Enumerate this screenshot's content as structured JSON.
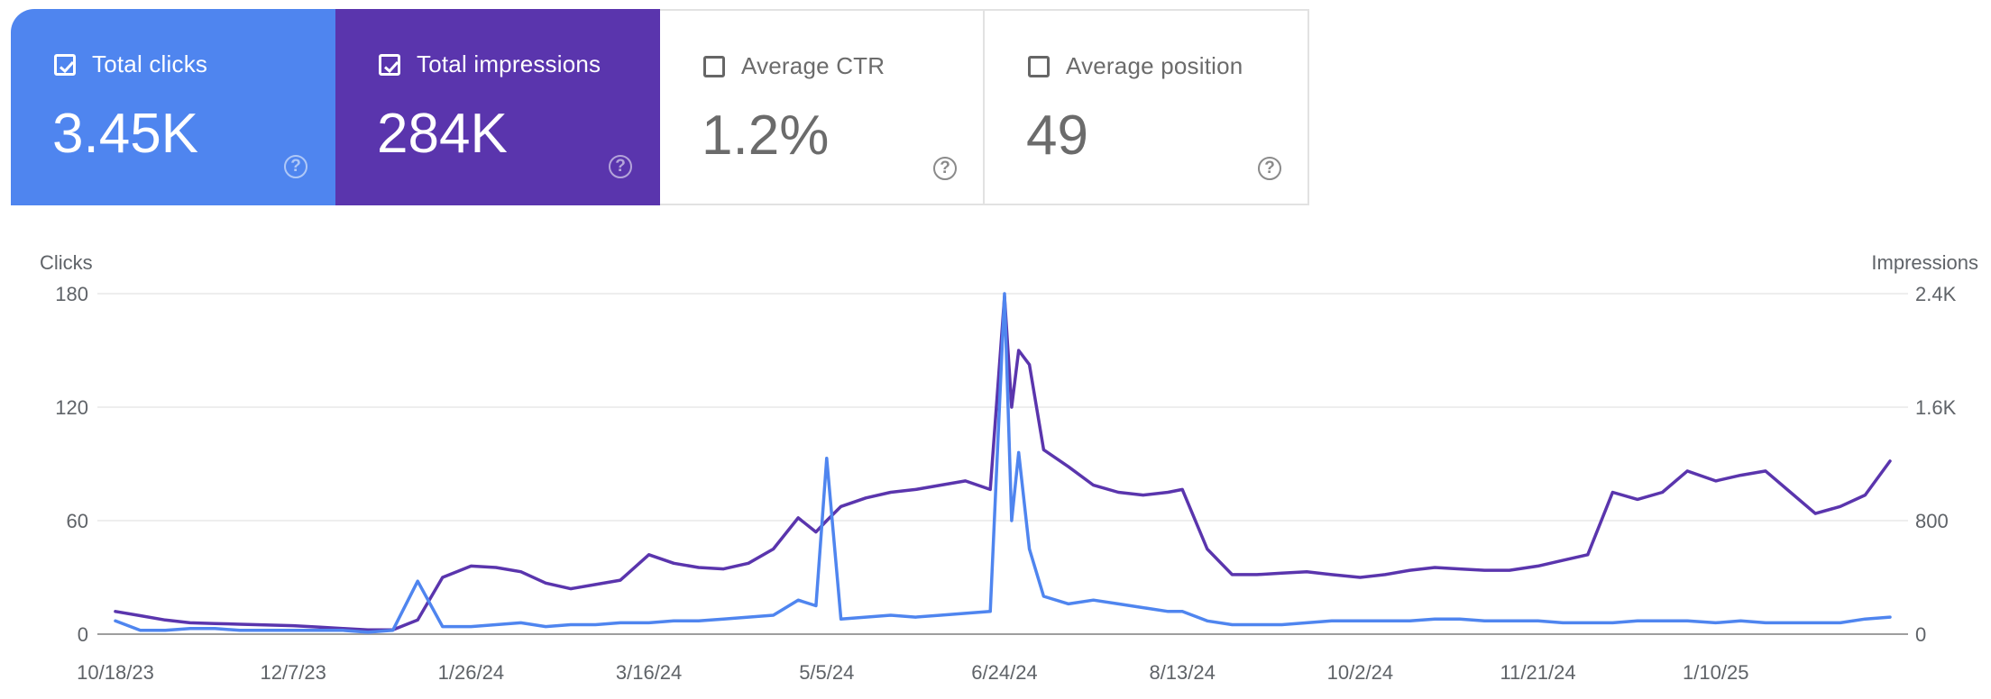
{
  "metrics": [
    {
      "label": "Total clicks",
      "value": "3.45K",
      "checked": true,
      "color": "#4f85ef"
    },
    {
      "label": "Total impressions",
      "value": "284K",
      "checked": true,
      "color": "#5a35ad"
    },
    {
      "label": "Average CTR",
      "value": "1.2%",
      "checked": false
    },
    {
      "label": "Average position",
      "value": "49",
      "checked": false
    }
  ],
  "help_glyph": "?",
  "chart_data": {
    "type": "line",
    "left_axis_title": "Clicks",
    "right_axis_title": "Impressions",
    "left_ticks": [
      "180",
      "120",
      "60",
      "0"
    ],
    "right_ticks": [
      "2.4K",
      "1.6K",
      "800",
      "0"
    ],
    "x_ticks": [
      "10/18/23",
      "12/7/23",
      "1/26/24",
      "3/16/24",
      "5/5/24",
      "6/24/24",
      "8/13/24",
      "10/2/24",
      "11/21/24",
      "1/10/25"
    ],
    "y_left_range": [
      0,
      180
    ],
    "y_right_range": [
      0,
      2400
    ],
    "grid": true,
    "series": [
      {
        "name": "Clicks",
        "axis": "left",
        "color": "#4f85ef",
        "points": [
          [
            "10/18/23",
            7
          ],
          [
            "10/25/23",
            2
          ],
          [
            "11/1/23",
            2
          ],
          [
            "11/8/23",
            3
          ],
          [
            "11/15/23",
            3
          ],
          [
            "11/22/23",
            2
          ],
          [
            "11/29/23",
            2
          ],
          [
            "12/7/23",
            2
          ],
          [
            "12/14/23",
            2
          ],
          [
            "12/21/23",
            2
          ],
          [
            "12/28/23",
            1
          ],
          [
            "1/4/24",
            2
          ],
          [
            "1/11/24",
            28
          ],
          [
            "1/18/24",
            4
          ],
          [
            "1/26/24",
            4
          ],
          [
            "2/2/24",
            5
          ],
          [
            "2/9/24",
            6
          ],
          [
            "2/16/24",
            4
          ],
          [
            "2/23/24",
            5
          ],
          [
            "3/1/24",
            5
          ],
          [
            "3/8/24",
            6
          ],
          [
            "3/16/24",
            6
          ],
          [
            "3/23/24",
            7
          ],
          [
            "3/30/24",
            7
          ],
          [
            "4/6/24",
            8
          ],
          [
            "4/13/24",
            9
          ],
          [
            "4/20/24",
            10
          ],
          [
            "4/27/24",
            18
          ],
          [
            "5/2/24",
            15
          ],
          [
            "5/5/24",
            93
          ],
          [
            "5/9/24",
            8
          ],
          [
            "5/16/24",
            9
          ],
          [
            "5/23/24",
            10
          ],
          [
            "5/30/24",
            9
          ],
          [
            "6/6/24",
            10
          ],
          [
            "6/13/24",
            11
          ],
          [
            "6/20/24",
            12
          ],
          [
            "6/24/24",
            180
          ],
          [
            "6/26/24",
            60
          ],
          [
            "6/28/24",
            96
          ],
          [
            "7/1/24",
            45
          ],
          [
            "7/5/24",
            20
          ],
          [
            "7/12/24",
            16
          ],
          [
            "7/19/24",
            18
          ],
          [
            "7/26/24",
            16
          ],
          [
            "8/2/24",
            14
          ],
          [
            "8/9/24",
            12
          ],
          [
            "8/13/24",
            12
          ],
          [
            "8/20/24",
            7
          ],
          [
            "8/27/24",
            5
          ],
          [
            "9/3/24",
            5
          ],
          [
            "9/10/24",
            5
          ],
          [
            "9/17/24",
            6
          ],
          [
            "9/24/24",
            7
          ],
          [
            "10/2/24",
            7
          ],
          [
            "10/9/24",
            7
          ],
          [
            "10/16/24",
            7
          ],
          [
            "10/23/24",
            8
          ],
          [
            "10/30/24",
            8
          ],
          [
            "11/6/24",
            7
          ],
          [
            "11/13/24",
            7
          ],
          [
            "11/21/24",
            7
          ],
          [
            "11/28/24",
            6
          ],
          [
            "12/5/24",
            6
          ],
          [
            "12/12/24",
            6
          ],
          [
            "12/19/24",
            7
          ],
          [
            "12/26/24",
            7
          ],
          [
            "1/2/25",
            7
          ],
          [
            "1/10/25",
            6
          ],
          [
            "1/17/25",
            7
          ],
          [
            "1/24/25",
            6
          ],
          [
            "1/31/25",
            6
          ],
          [
            "2/7/25",
            6
          ],
          [
            "2/14/25",
            6
          ],
          [
            "2/21/25",
            8
          ],
          [
            "2/28/25",
            9
          ]
        ]
      },
      {
        "name": "Impressions",
        "axis": "right",
        "color": "#5a35ad",
        "points": [
          [
            "10/18/23",
            160
          ],
          [
            "10/25/23",
            130
          ],
          [
            "11/1/23",
            100
          ],
          [
            "11/8/23",
            80
          ],
          [
            "11/15/23",
            75
          ],
          [
            "11/22/23",
            70
          ],
          [
            "11/29/23",
            65
          ],
          [
            "12/7/23",
            60
          ],
          [
            "12/14/23",
            50
          ],
          [
            "12/21/23",
            40
          ],
          [
            "12/28/23",
            30
          ],
          [
            "1/4/24",
            30
          ],
          [
            "1/11/24",
            100
          ],
          [
            "1/18/24",
            400
          ],
          [
            "1/26/24",
            480
          ],
          [
            "2/2/24",
            470
          ],
          [
            "2/9/24",
            440
          ],
          [
            "2/16/24",
            360
          ],
          [
            "2/23/24",
            320
          ],
          [
            "3/1/24",
            350
          ],
          [
            "3/8/24",
            380
          ],
          [
            "3/16/24",
            560
          ],
          [
            "3/23/24",
            500
          ],
          [
            "3/30/24",
            470
          ],
          [
            "4/6/24",
            460
          ],
          [
            "4/13/24",
            500
          ],
          [
            "4/20/24",
            600
          ],
          [
            "4/27/24",
            820
          ],
          [
            "5/2/24",
            720
          ],
          [
            "5/5/24",
            800
          ],
          [
            "5/9/24",
            900
          ],
          [
            "5/16/24",
            960
          ],
          [
            "5/23/24",
            1000
          ],
          [
            "5/30/24",
            1020
          ],
          [
            "6/6/24",
            1050
          ],
          [
            "6/13/24",
            1080
          ],
          [
            "6/20/24",
            1020
          ],
          [
            "6/24/24",
            2380
          ],
          [
            "6/26/24",
            1600
          ],
          [
            "6/28/24",
            2000
          ],
          [
            "7/1/24",
            1900
          ],
          [
            "7/5/24",
            1300
          ],
          [
            "7/12/24",
            1180
          ],
          [
            "7/19/24",
            1050
          ],
          [
            "7/26/24",
            1000
          ],
          [
            "8/2/24",
            980
          ],
          [
            "8/9/24",
            1000
          ],
          [
            "8/13/24",
            1020
          ],
          [
            "8/20/24",
            600
          ],
          [
            "8/27/24",
            420
          ],
          [
            "9/3/24",
            420
          ],
          [
            "9/10/24",
            430
          ],
          [
            "9/17/24",
            440
          ],
          [
            "9/24/24",
            420
          ],
          [
            "10/2/24",
            400
          ],
          [
            "10/9/24",
            420
          ],
          [
            "10/16/24",
            450
          ],
          [
            "10/23/24",
            470
          ],
          [
            "10/30/24",
            460
          ],
          [
            "11/6/24",
            450
          ],
          [
            "11/13/24",
            450
          ],
          [
            "11/21/24",
            480
          ],
          [
            "11/28/24",
            520
          ],
          [
            "12/5/24",
            560
          ],
          [
            "12/12/24",
            1000
          ],
          [
            "12/19/24",
            950
          ],
          [
            "12/26/24",
            1000
          ],
          [
            "1/2/25",
            1150
          ],
          [
            "1/10/25",
            1080
          ],
          [
            "1/17/25",
            1120
          ],
          [
            "1/24/25",
            1150
          ],
          [
            "1/31/25",
            1000
          ],
          [
            "2/7/25",
            850
          ],
          [
            "2/14/25",
            900
          ],
          [
            "2/21/25",
            980
          ],
          [
            "2/28/25",
            1220
          ]
        ]
      }
    ]
  }
}
